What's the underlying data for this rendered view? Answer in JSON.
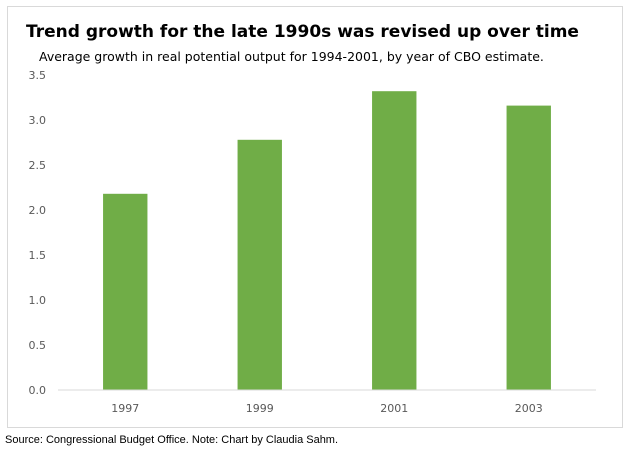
{
  "title": "Trend growth for the late 1990s was revised up over time",
  "subtitle": "Average growth in real potential output for 1994-2001, by year of CBO estimate.",
  "source": "Source: Congressional Budget Office. Note: Chart by Claudia Sahm.",
  "colors": {
    "bar": "#70ad47",
    "axis": "#d9d9d9",
    "tick_text": "#595959"
  },
  "chart_data": {
    "type": "bar",
    "title": "Trend growth for the late 1990s was revised up over time",
    "subtitle": "Average growth in real potential output for 1994-2001, by year of CBO estimate.",
    "categories": [
      "1997",
      "1999",
      "2001",
      "2003"
    ],
    "values": [
      2.18,
      2.78,
      3.32,
      3.16
    ],
    "xlabel": "",
    "ylabel": "",
    "ylim": [
      0,
      3.5
    ],
    "yticks": [
      "0.0",
      "0.5",
      "1.0",
      "1.5",
      "2.0",
      "2.5",
      "3.0",
      "3.5"
    ],
    "grid": false,
    "legend": "none"
  }
}
